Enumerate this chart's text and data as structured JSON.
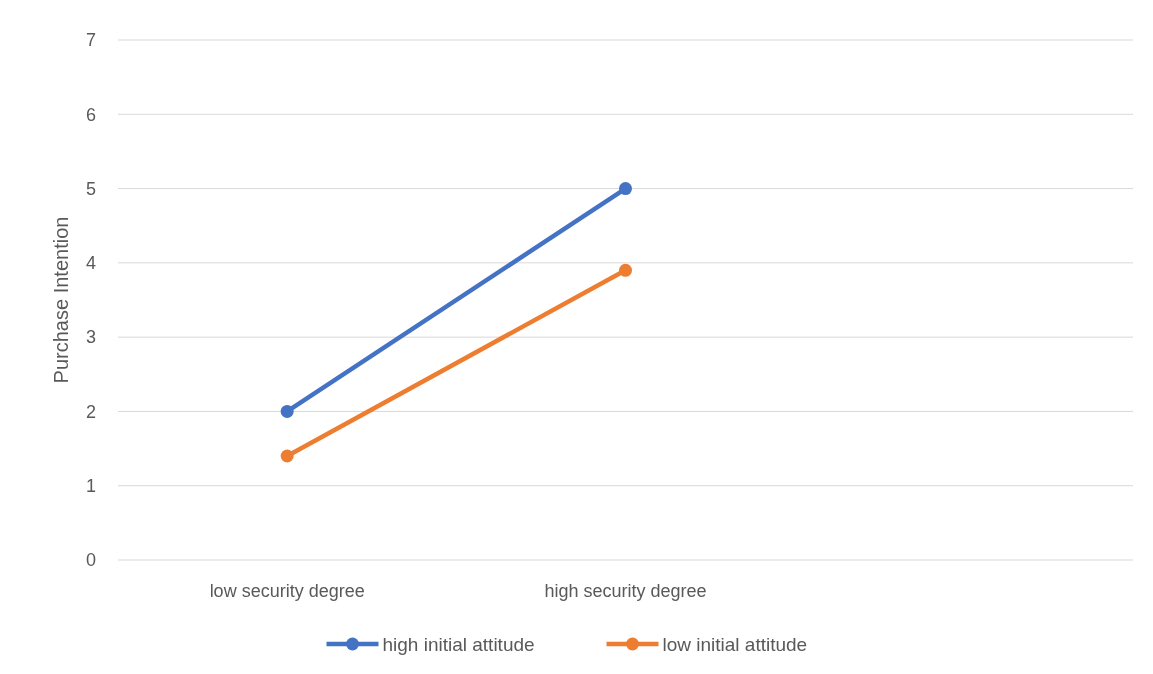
{
  "chart_data": {
    "type": "line",
    "ylabel": "Purchase Intention",
    "categories": [
      "low security degree",
      "high security degree",
      null
    ],
    "series": [
      {
        "name": "high initial attitude",
        "color": "#4472c4",
        "values": [
          2,
          5,
          null
        ]
      },
      {
        "name": "low initial attitude",
        "color": "#ed7d31",
        "values": [
          1.4,
          3.9,
          null
        ]
      }
    ],
    "ylim": [
      0,
      7
    ],
    "yticks": [
      0,
      1,
      2,
      3,
      4,
      5,
      6,
      7
    ],
    "grid": "y",
    "legend": "bottom",
    "marker": "circle",
    "line_style": "solid"
  }
}
